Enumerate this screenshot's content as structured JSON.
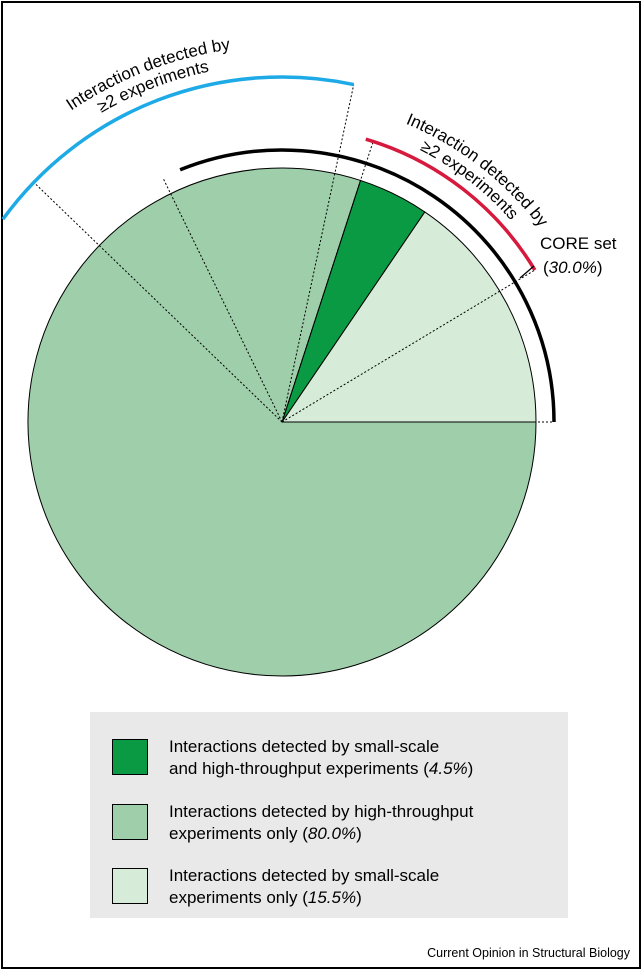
{
  "chart_data": {
    "type": "pie",
    "slices": [
      {
        "label_main": "Interactions detected by small-scale and high-throughput experiments",
        "percent_label": "4.5%",
        "value": 4.5,
        "color": "#0a9a44"
      },
      {
        "label_main": "Interactions detected by high-throughput experiments only",
        "percent_label": "80.0%",
        "value": 80.0,
        "color": "#9fcfaa"
      },
      {
        "label_main": "Interactions detected by small-scale experiments only",
        "percent_label": "15.5%",
        "value": 15.5,
        "color": "#d6ecd8"
      }
    ],
    "annotations": {
      "blue_arc": {
        "line1": "Interaction detected by",
        "line2": "≥2 experiments",
        "color": "#1eaae6"
      },
      "red_arc": {
        "line1": "Interaction detected by",
        "line2": "≥2 experiments",
        "color": "#d6193c"
      },
      "core": {
        "label": "CORE set",
        "percent": "30.0%",
        "value": 30.0,
        "color": "#000000"
      }
    }
  },
  "legend": {
    "items": [
      {
        "line1": "Interactions detected by small-scale",
        "line2_prefix": "and high-throughput experiments (",
        "percent": "4.5%",
        "suffix": ")"
      },
      {
        "line1": "Interactions detected by high-throughput",
        "line2_prefix": "experiments only (",
        "percent": "80.0%",
        "suffix": ")"
      },
      {
        "line1": "Interactions detected by small-scale",
        "line2_prefix": "experiments only (",
        "percent": "15.5%",
        "suffix": ")"
      }
    ]
  },
  "credit": "Current Opinion in Structural Biology"
}
